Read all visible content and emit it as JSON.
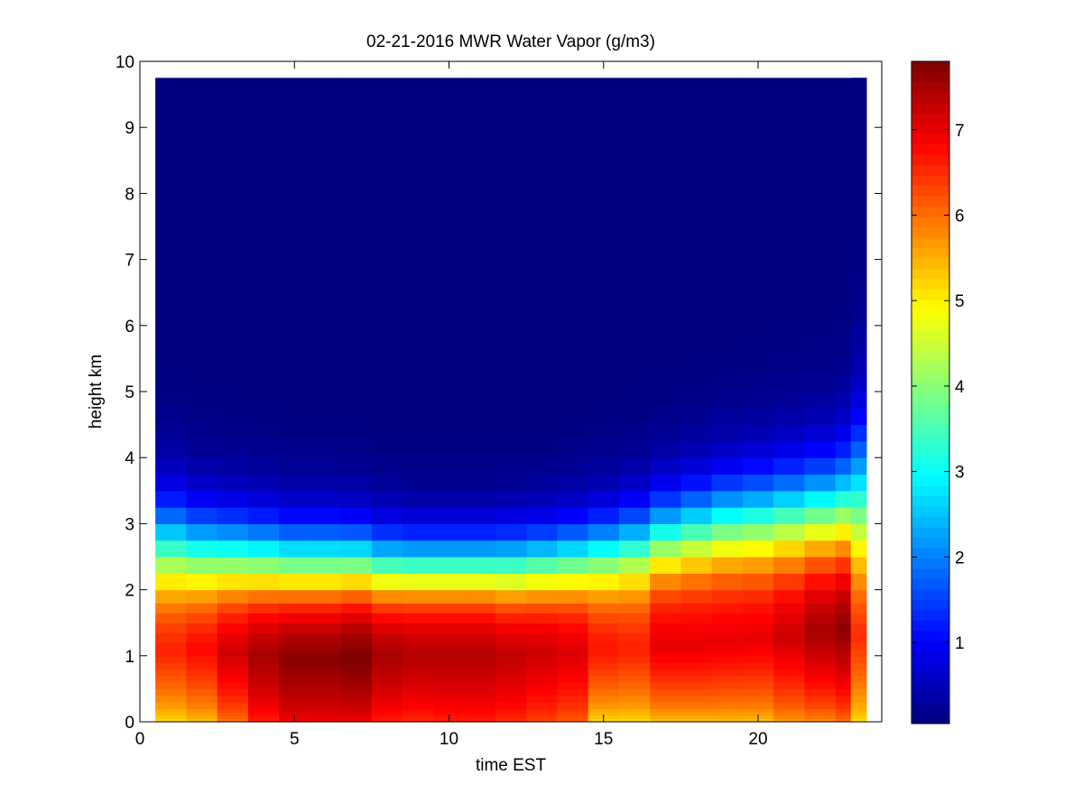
{
  "chart_data": {
    "type": "heatmap",
    "title": "02-21-2016 MWR Water Vapor (g/m3)",
    "xlabel": "time EST",
    "ylabel": "height km",
    "xlim": [
      0,
      24
    ],
    "ylim": [
      0,
      10
    ],
    "x_ticks": [
      0,
      5,
      10,
      15,
      20
    ],
    "y_ticks": [
      0,
      1,
      2,
      3,
      4,
      5,
      6,
      7,
      8,
      9,
      10
    ],
    "colorbar": {
      "range": [
        0.05,
        7.8
      ],
      "ticks": [
        1,
        2,
        3,
        4,
        5,
        6,
        7
      ],
      "colormap": "jet"
    },
    "grid": false,
    "x": [
      0.5,
      1.5,
      2.5,
      3.5,
      4.5,
      5.5,
      6.5,
      7.5,
      8.5,
      9.5,
      10.5,
      11.5,
      12.5,
      13.5,
      14.5,
      15.5,
      16.5,
      17.5,
      18.5,
      19.5,
      20.5,
      21.5,
      22.5,
      23.5
    ],
    "x_edges": [
      0.5,
      1.5,
      2.5,
      3.5,
      4.5,
      5.5,
      6.5,
      7.5,
      8.5,
      9.5,
      10.5,
      11.5,
      12.5,
      13.5,
      14.5,
      15.5,
      16.5,
      17.5,
      18.5,
      19.5,
      20.5,
      21.5,
      22.5,
      23.5
    ],
    "y_edges": [
      0,
      0.05,
      0.1,
      0.15,
      0.2,
      0.3,
      0.4,
      0.5,
      0.6,
      0.7,
      0.8,
      0.9,
      1.0,
      1.1,
      1.2,
      1.35,
      1.5,
      1.65,
      1.8,
      2.0,
      2.25,
      2.5,
      2.75,
      3.0,
      3.25,
      3.5,
      3.75,
      4.0,
      4.25,
      4.5,
      4.75,
      5.0,
      5.25,
      5.5,
      5.75,
      6.0,
      6.25,
      6.5,
      6.75,
      7.0,
      7.25,
      7.5,
      7.75,
      8.0,
      8.25,
      8.5,
      8.75,
      9.0,
      9.25,
      9.5,
      9.75
    ],
    "profile_params": {
      "bottom_value": [
        5.0,
        5.2,
        5.8,
        6.5,
        6.8,
        6.8,
        6.8,
        6.5,
        6.4,
        6.5,
        6.5,
        6.4,
        6.2,
        6.0,
        5.0,
        5.0,
        5.2,
        5.2,
        5.2,
        5.2,
        5.5,
        5.6,
        5.8,
        5.0
      ],
      "peak_value": [
        6.6,
        6.8,
        7.2,
        7.5,
        7.7,
        7.7,
        7.8,
        7.5,
        7.4,
        7.4,
        7.4,
        7.3,
        7.2,
        7.1,
        6.7,
        6.6,
        7.0,
        7.0,
        7.0,
        7.0,
        7.2,
        7.5,
        7.7,
        6.5
      ],
      "peak_height_km": [
        1.1,
        1.1,
        1.05,
        1.0,
        0.95,
        0.95,
        0.95,
        1.0,
        1.0,
        1.0,
        1.0,
        1.0,
        1.05,
        1.05,
        1.1,
        1.1,
        1.15,
        1.15,
        1.2,
        1.25,
        1.3,
        1.35,
        1.4,
        1.3
      ],
      "midpoint_km": [
        2.6,
        2.5,
        2.45,
        2.4,
        2.35,
        2.35,
        2.35,
        2.3,
        2.3,
        2.3,
        2.3,
        2.3,
        2.35,
        2.4,
        2.5,
        2.6,
        2.75,
        2.85,
        2.95,
        3.0,
        3.05,
        3.1,
        3.15,
        3.3
      ],
      "scale_km": [
        1.4,
        1.3,
        1.25,
        1.2,
        1.15,
        1.15,
        1.1,
        1.05,
        1.0,
        1.0,
        1.0,
        1.05,
        1.05,
        1.1,
        1.15,
        1.2,
        1.25,
        1.3,
        1.35,
        1.4,
        1.45,
        1.5,
        1.6,
        2.1
      ]
    }
  }
}
